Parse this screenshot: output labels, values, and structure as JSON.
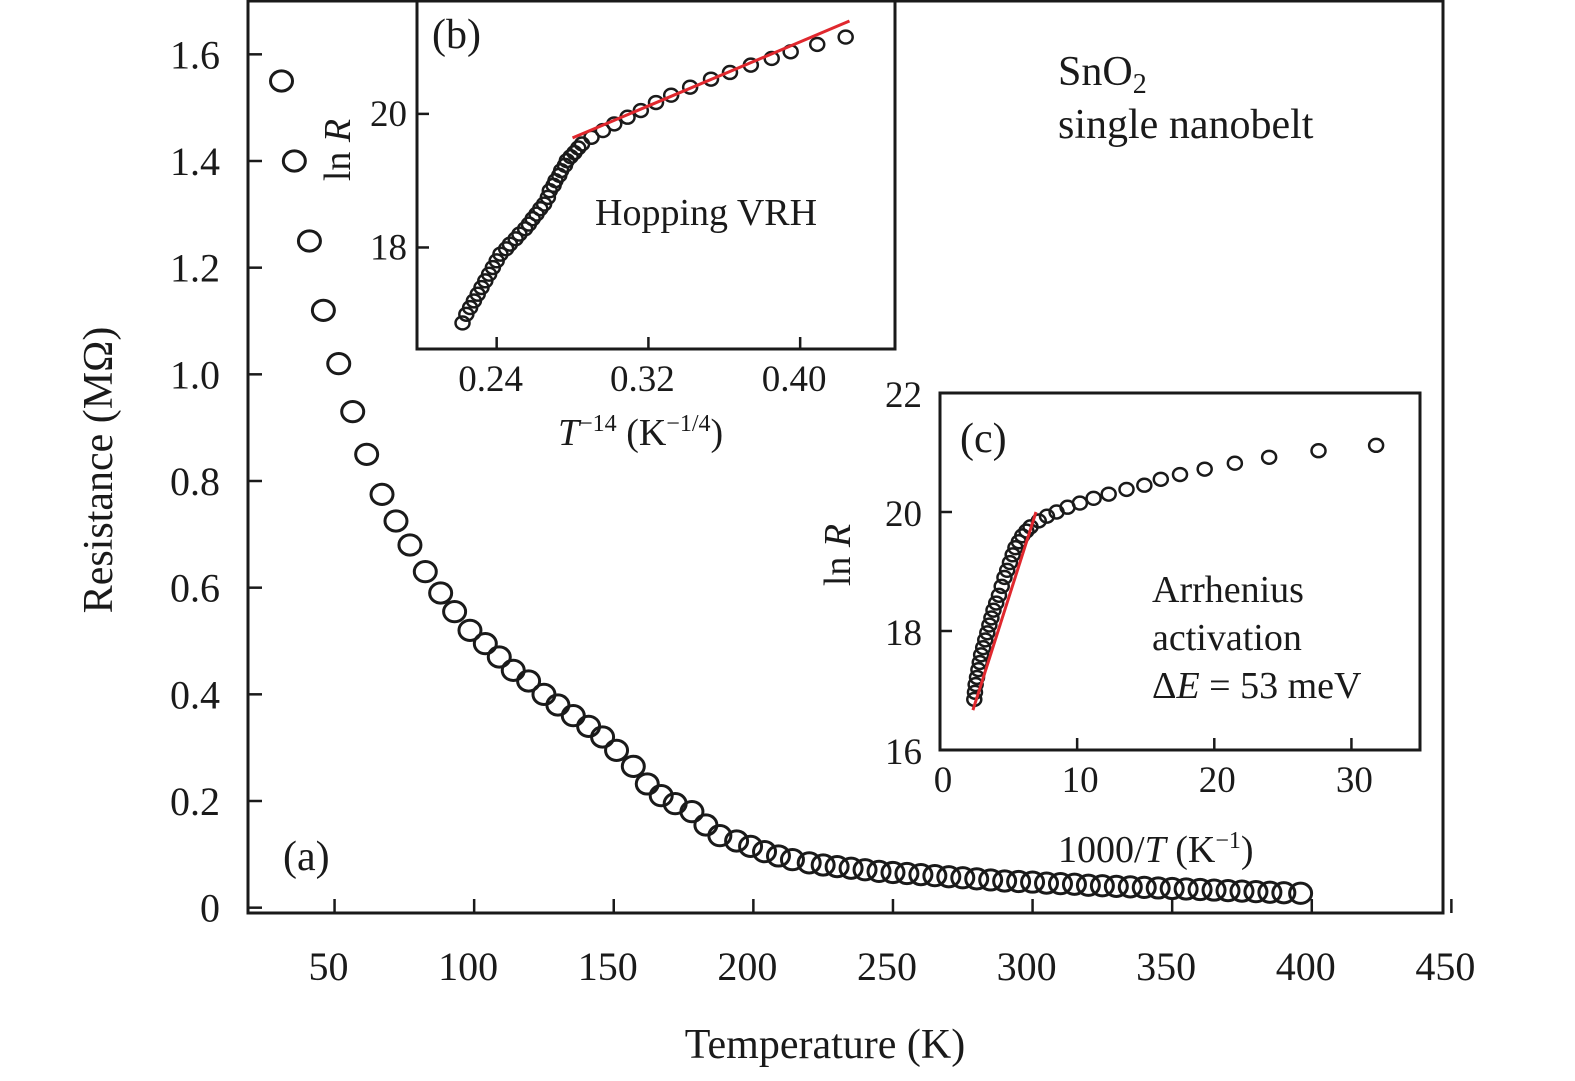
{
  "chart_data": [
    {
      "panel": "(a)",
      "type": "scatter",
      "xlabel": "Temperature (K)",
      "ylabel": "Resistance (MΩ)",
      "xlim": [
        19,
        447
      ],
      "ylim": [
        -0.01,
        1.7
      ],
      "xticks": [
        50,
        100,
        150,
        200,
        250,
        300,
        350,
        400,
        450
      ],
      "yticks": [
        "0",
        "0.2",
        "0.4",
        "0.6",
        "0.8",
        "1.0",
        "1.2",
        "1.4",
        "1.6"
      ],
      "annotation": [
        "SnO",
        "2",
        "single nanobelt"
      ],
      "marker": "open-circle",
      "x": [
        31,
        35.6,
        41,
        46,
        51.5,
        56.5,
        61.5,
        67,
        72,
        77,
        82.5,
        88,
        93,
        98.5,
        104,
        109,
        114,
        119.5,
        125,
        130,
        135.5,
        141,
        146,
        151,
        157,
        162,
        167,
        172,
        178,
        183,
        188,
        194,
        199,
        204,
        209,
        214,
        220,
        225,
        230,
        235,
        240,
        245,
        250,
        255,
        260,
        265,
        270,
        275,
        280,
        285,
        290,
        295,
        300,
        305,
        310,
        315,
        320,
        325,
        330,
        335,
        340,
        345,
        350,
        355,
        360,
        365,
        370,
        375,
        380,
        385,
        390,
        396
      ],
      "y": [
        1.55,
        1.4,
        1.25,
        1.12,
        1.02,
        0.93,
        0.85,
        0.775,
        0.725,
        0.68,
        0.63,
        0.59,
        0.555,
        0.52,
        0.495,
        0.47,
        0.445,
        0.425,
        0.4,
        0.38,
        0.36,
        0.34,
        0.32,
        0.295,
        0.265,
        0.232,
        0.21,
        0.195,
        0.18,
        0.155,
        0.135,
        0.125,
        0.115,
        0.105,
        0.097,
        0.09,
        0.084,
        0.08,
        0.077,
        0.074,
        0.071,
        0.068,
        0.066,
        0.064,
        0.062,
        0.06,
        0.058,
        0.056,
        0.054,
        0.052,
        0.05,
        0.049,
        0.048,
        0.046,
        0.045,
        0.044,
        0.042,
        0.041,
        0.04,
        0.039,
        0.038,
        0.037,
        0.036,
        0.035,
        0.034,
        0.033,
        0.032,
        0.031,
        0.03,
        0.029,
        0.028,
        0.027
      ]
    },
    {
      "panel": "(b)",
      "type": "scatter",
      "xlabel_parts": [
        "T",
        "−14",
        " (K",
        "−1/4",
        ")"
      ],
      "ylabel_parts": [
        "ln ",
        "R"
      ],
      "xlim": [
        0.198,
        0.45
      ],
      "ylim": [
        16.48,
        21.69
      ],
      "xticks": [
        "0.24",
        "0.32",
        "0.40"
      ],
      "yticks": [
        "18",
        "20"
      ],
      "annotation": "Hopping VRH",
      "fit_color": "#e0282e",
      "fit_line": [
        [
          0.28,
          19.64
        ],
        [
          0.426,
          21.39
        ]
      ],
      "points": [
        [
          0.222,
          16.87
        ],
        [
          0.224,
          17.0
        ],
        [
          0.226,
          17.1
        ],
        [
          0.228,
          17.2
        ],
        [
          0.23,
          17.3
        ],
        [
          0.232,
          17.4
        ],
        [
          0.234,
          17.5
        ],
        [
          0.236,
          17.6
        ],
        [
          0.238,
          17.7
        ],
        [
          0.24,
          17.8
        ],
        [
          0.242,
          17.9
        ],
        [
          0.245,
          17.98
        ],
        [
          0.247,
          18.05
        ],
        [
          0.25,
          18.13
        ],
        [
          0.252,
          18.2
        ],
        [
          0.255,
          18.28
        ],
        [
          0.257,
          18.35
        ],
        [
          0.259,
          18.43
        ],
        [
          0.261,
          18.5
        ],
        [
          0.263,
          18.58
        ],
        [
          0.265,
          18.65
        ],
        [
          0.267,
          18.75
        ],
        [
          0.268,
          18.85
        ],
        [
          0.27,
          18.93
        ],
        [
          0.271,
          19.0
        ],
        [
          0.273,
          19.08
        ],
        [
          0.274,
          19.15
        ],
        [
          0.276,
          19.23
        ],
        [
          0.277,
          19.3
        ],
        [
          0.279,
          19.36
        ],
        [
          0.281,
          19.42
        ],
        [
          0.283,
          19.49
        ],
        [
          0.285,
          19.55
        ],
        [
          0.29,
          19.65
        ],
        [
          0.296,
          19.75
        ],
        [
          0.302,
          19.85
        ],
        [
          0.309,
          19.95
        ],
        [
          0.316,
          20.05
        ],
        [
          0.324,
          20.17
        ],
        [
          0.332,
          20.28
        ],
        [
          0.342,
          20.4
        ],
        [
          0.353,
          20.52
        ],
        [
          0.363,
          20.62
        ],
        [
          0.374,
          20.73
        ],
        [
          0.385,
          20.83
        ],
        [
          0.395,
          20.93
        ],
        [
          0.409,
          21.04
        ],
        [
          0.424,
          21.15
        ]
      ]
    },
    {
      "panel": "(c)",
      "type": "scatter",
      "xlabel_parts": [
        "1000/",
        "T",
        " (K",
        "−1",
        ")"
      ],
      "ylabel_parts": [
        "ln ",
        "R"
      ],
      "xlim": [
        0,
        35
      ],
      "ylim": [
        16,
        22
      ],
      "xticks": [
        "0",
        "10",
        "20",
        "30"
      ],
      "yticks": [
        "16",
        "18",
        "20",
        "22"
      ],
      "annotation": [
        "Arrhenius",
        "activation",
        "Δ",
        "E",
        " = 53 meV"
      ],
      "fit_color": "#e0282e",
      "fit_line": [
        [
          2.4,
          16.67
        ],
        [
          7.0,
          20.0
        ]
      ],
      "points": [
        [
          2.5,
          16.85
        ],
        [
          2.55,
          16.97
        ],
        [
          2.6,
          17.1
        ],
        [
          2.7,
          17.22
        ],
        [
          2.8,
          17.35
        ],
        [
          2.9,
          17.47
        ],
        [
          3.0,
          17.6
        ],
        [
          3.15,
          17.72
        ],
        [
          3.3,
          17.85
        ],
        [
          3.45,
          17.97
        ],
        [
          3.6,
          18.1
        ],
        [
          3.75,
          18.22
        ],
        [
          3.9,
          18.35
        ],
        [
          4.1,
          18.47
        ],
        [
          4.3,
          18.6
        ],
        [
          4.5,
          18.75
        ],
        [
          4.7,
          18.9
        ],
        [
          4.9,
          19.02
        ],
        [
          5.1,
          19.15
        ],
        [
          5.3,
          19.28
        ],
        [
          5.5,
          19.4
        ],
        [
          5.75,
          19.5
        ],
        [
          6.0,
          19.6
        ],
        [
          6.3,
          19.68
        ],
        [
          6.6,
          19.75
        ],
        [
          7.2,
          19.85
        ],
        [
          7.8,
          19.93
        ],
        [
          8.5,
          20.0
        ],
        [
          9.3,
          20.08
        ],
        [
          10.2,
          20.15
        ],
        [
          11.2,
          20.23
        ],
        [
          12.3,
          20.3
        ],
        [
          13.6,
          20.38
        ],
        [
          14.9,
          20.45
        ],
        [
          16.1,
          20.55
        ],
        [
          17.5,
          20.63
        ],
        [
          19.3,
          20.72
        ],
        [
          21.5,
          20.82
        ],
        [
          24.0,
          20.92
        ],
        [
          27.6,
          21.03
        ],
        [
          31.8,
          21.12
        ]
      ]
    }
  ]
}
